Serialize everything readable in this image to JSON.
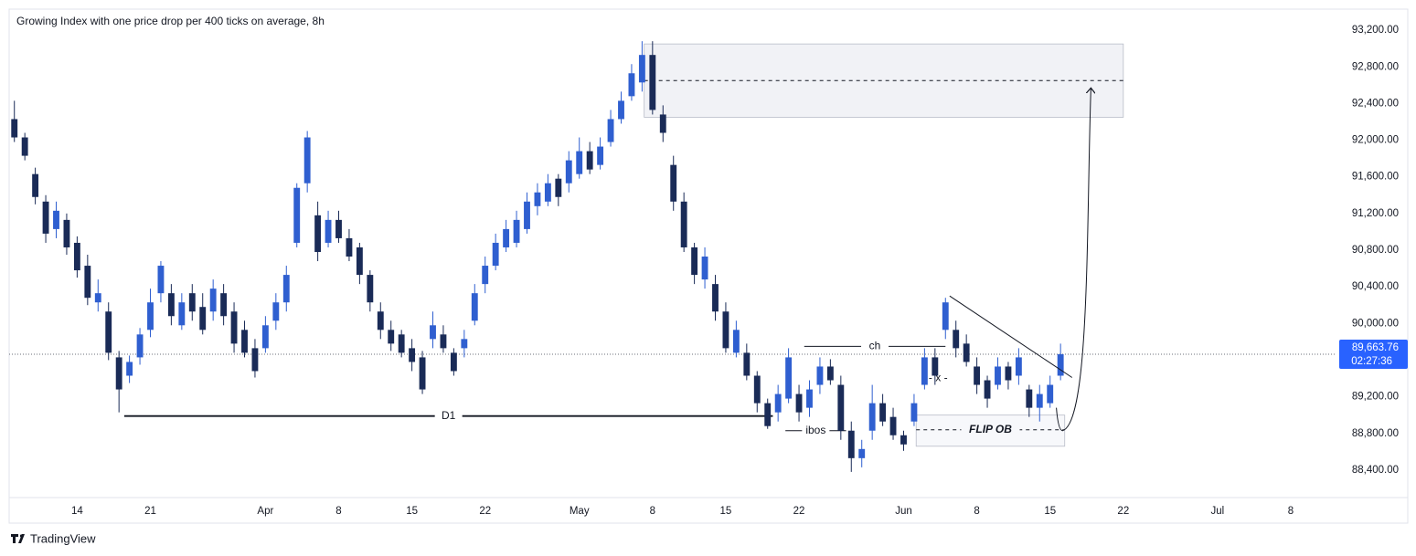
{
  "chart_data": {
    "type": "candlestick",
    "title": "Growing Index with one price drop per 400 ticks on average, 8h",
    "brand": "TradingView",
    "up_color": "#2f5fd0",
    "down_color": "#1a2b57",
    "xlim": [
      -0.5,
      126.2
    ],
    "ylim": [
      88100,
      93430
    ],
    "yticks": [
      {
        "value": 88400,
        "label": "88,400.00"
      },
      {
        "value": 88800,
        "label": "88,800.00"
      },
      {
        "value": 89200,
        "label": "89,200.00"
      },
      {
        "value": 89600,
        "label": "89,600.00"
      },
      {
        "value": 90000,
        "label": "90,000.00"
      },
      {
        "value": 90400,
        "label": "90,400.00"
      },
      {
        "value": 90800,
        "label": "90,800.00"
      },
      {
        "value": 91200,
        "label": "91,200.00"
      },
      {
        "value": 91600,
        "label": "91,600.00"
      },
      {
        "value": 92000,
        "label": "92,000.00"
      },
      {
        "value": 92400,
        "label": "92,400.00"
      },
      {
        "value": 92800,
        "label": "92,800.00"
      },
      {
        "value": 93200,
        "label": "93,200.00"
      }
    ],
    "xticks": [
      {
        "value": 6,
        "label": "14"
      },
      {
        "value": 13,
        "label": "21"
      },
      {
        "value": 24,
        "label": "Apr"
      },
      {
        "value": 31,
        "label": "8"
      },
      {
        "value": 38,
        "label": "15"
      },
      {
        "value": 45,
        "label": "22"
      },
      {
        "value": 54,
        "label": "May"
      },
      {
        "value": 61,
        "label": "8"
      },
      {
        "value": 68,
        "label": "15"
      },
      {
        "value": 75,
        "label": "22"
      },
      {
        "value": 85,
        "label": "Jun"
      },
      {
        "value": 92,
        "label": "8"
      },
      {
        "value": 99,
        "label": "15"
      },
      {
        "value": 106,
        "label": "22"
      },
      {
        "value": 115,
        "label": "Jul"
      },
      {
        "value": 122,
        "label": "8"
      }
    ],
    "candles": [
      [
        92230,
        92430,
        91980,
        92030
      ],
      [
        92030,
        92080,
        91780,
        91830
      ],
      [
        91630,
        91700,
        91300,
        91380
      ],
      [
        91330,
        91400,
        90880,
        90980
      ],
      [
        91030,
        91330,
        90930,
        91230
      ],
      [
        91130,
        91200,
        90750,
        90830
      ],
      [
        90880,
        90950,
        90500,
        90580
      ],
      [
        90630,
        90750,
        90200,
        90280
      ],
      [
        90230,
        90480,
        90130,
        90330
      ],
      [
        90130,
        90230,
        89600,
        89680
      ],
      [
        89630,
        89700,
        89030,
        89280
      ],
      [
        89430,
        89650,
        89350,
        89580
      ],
      [
        89630,
        89950,
        89550,
        89880
      ],
      [
        89930,
        90380,
        89850,
        90230
      ],
      [
        90330,
        90680,
        90230,
        90630
      ],
      [
        90330,
        90430,
        89980,
        90080
      ],
      [
        89980,
        90330,
        89930,
        90230
      ],
      [
        90330,
        90430,
        90030,
        90130
      ],
      [
        90180,
        90330,
        89880,
        89930
      ],
      [
        90130,
        90480,
        90030,
        90380
      ],
      [
        90330,
        90430,
        89980,
        90080
      ],
      [
        90130,
        90230,
        89680,
        89780
      ],
      [
        89930,
        90030,
        89630,
        89680
      ],
      [
        89730,
        89830,
        89410,
        89480
      ],
      [
        89730,
        90080,
        89680,
        89980
      ],
      [
        90030,
        90330,
        89930,
        90230
      ],
      [
        90230,
        90630,
        90130,
        90530
      ],
      [
        90880,
        91530,
        90830,
        91480
      ],
      [
        91530,
        92100,
        91430,
        92030
      ],
      [
        91180,
        91330,
        90680,
        90780
      ],
      [
        90880,
        91230,
        90830,
        91130
      ],
      [
        91130,
        91230,
        90880,
        90930
      ],
      [
        90930,
        91030,
        90680,
        90730
      ],
      [
        90830,
        90880,
        90430,
        90530
      ],
      [
        90530,
        90580,
        90130,
        90230
      ],
      [
        90130,
        90230,
        89830,
        89930
      ],
      [
        89930,
        90030,
        89700,
        89780
      ],
      [
        89880,
        89930,
        89630,
        89680
      ],
      [
        89730,
        89830,
        89480,
        89580
      ],
      [
        89630,
        89700,
        89230,
        89280
      ],
      [
        89830,
        90130,
        89730,
        89980
      ],
      [
        89880,
        89980,
        89680,
        89730
      ],
      [
        89680,
        89730,
        89430,
        89480
      ],
      [
        89730,
        89930,
        89630,
        89830
      ],
      [
        90030,
        90430,
        89980,
        90330
      ],
      [
        90430,
        90730,
        90330,
        90630
      ],
      [
        90630,
        90980,
        90580,
        90880
      ],
      [
        90830,
        91130,
        90780,
        91030
      ],
      [
        90880,
        91230,
        90830,
        91130
      ],
      [
        91030,
        91430,
        90980,
        91330
      ],
      [
        91280,
        91530,
        91180,
        91430
      ],
      [
        91330,
        91630,
        91280,
        91530
      ],
      [
        91580,
        91630,
        91280,
        91380
      ],
      [
        91530,
        91880,
        91430,
        91780
      ],
      [
        91630,
        92030,
        91580,
        91880
      ],
      [
        91880,
        91980,
        91630,
        91680
      ],
      [
        91730,
        92030,
        91680,
        91930
      ],
      [
        91980,
        92330,
        91930,
        92230
      ],
      [
        92230,
        92530,
        92180,
        92430
      ],
      [
        92480,
        92830,
        92430,
        92730
      ],
      [
        92630,
        93080,
        92530,
        92930
      ],
      [
        92930,
        93080,
        92280,
        92330
      ],
      [
        92280,
        92380,
        91980,
        92080
      ],
      [
        91730,
        91830,
        91230,
        91330
      ],
      [
        91330,
        91430,
        90780,
        90830
      ],
      [
        90830,
        90880,
        90430,
        90530
      ],
      [
        90480,
        90830,
        90380,
        90730
      ],
      [
        90430,
        90530,
        90030,
        90130
      ],
      [
        90130,
        90230,
        89680,
        89730
      ],
      [
        89680,
        90030,
        89630,
        89930
      ],
      [
        89680,
        89780,
        89380,
        89430
      ],
      [
        89430,
        89480,
        89030,
        89130
      ],
      [
        89130,
        89180,
        88850,
        88880
      ],
      [
        89030,
        89330,
        88930,
        89230
      ],
      [
        89180,
        89730,
        89130,
        89630
      ],
      [
        89230,
        89330,
        88930,
        89030
      ],
      [
        89080,
        89380,
        88980,
        89280
      ],
      [
        89330,
        89630,
        89230,
        89530
      ],
      [
        89530,
        89610,
        89330,
        89380
      ],
      [
        89330,
        89430,
        88730,
        88830
      ],
      [
        88830,
        88930,
        88380,
        88530
      ],
      [
        88530,
        88730,
        88430,
        88630
      ],
      [
        88830,
        89330,
        88730,
        89130
      ],
      [
        89130,
        89230,
        88880,
        88930
      ],
      [
        88980,
        89080,
        88730,
        88780
      ],
      [
        88780,
        88830,
        88610,
        88680
      ],
      [
        88930,
        89230,
        88880,
        89130
      ],
      [
        89330,
        89730,
        89280,
        89630
      ],
      [
        89630,
        89730,
        89330,
        89430
      ],
      [
        89930,
        90280,
        89830,
        90230
      ],
      [
        89930,
        90030,
        89630,
        89730
      ],
      [
        89780,
        89880,
        89530,
        89580
      ],
      [
        89530,
        89630,
        89230,
        89330
      ],
      [
        89380,
        89430,
        89080,
        89180
      ],
      [
        89330,
        89630,
        89280,
        89530
      ],
      [
        89530,
        89580,
        89280,
        89380
      ],
      [
        89430,
        89730,
        89330,
        89630
      ],
      [
        89280,
        89330,
        88980,
        89080
      ],
      [
        89080,
        89330,
        88930,
        89230
      ],
      [
        89130,
        89430,
        89080,
        89330
      ],
      [
        89430,
        89780,
        89380,
        89663.76
      ]
    ],
    "last_price": {
      "value": 89663.76,
      "label": "89,663.76"
    },
    "countdown": "02:27:36",
    "zones": [
      {
        "from": 60.2,
        "to": 106,
        "low": 92250,
        "high": 93050,
        "mid": 92650
      },
      {
        "label": "FLIP OB",
        "from": 86.2,
        "to": 100.4,
        "low": 88660,
        "high": 89000,
        "mid": 88840
      }
    ],
    "levels": [
      {
        "label": "D1",
        "value": 88990,
        "from": 10.5,
        "to": 72.5
      },
      {
        "label": "ch",
        "value": 89750,
        "from": 75.5,
        "to": 89
      },
      {
        "label": "ibos",
        "value": 88830,
        "from": 73.7,
        "to": 79.5
      }
    ],
    "notes": [
      {
        "text": "- x -",
        "x": 88.3,
        "y": 89400
      }
    ],
    "trendline": {
      "x": [
        89.4,
        101.1
      ],
      "y": [
        90300,
        89410
      ]
    },
    "projection": {
      "x": [
        99.6,
        100.2,
        102.9
      ],
      "y": [
        89080,
        88830,
        92560
      ]
    }
  }
}
